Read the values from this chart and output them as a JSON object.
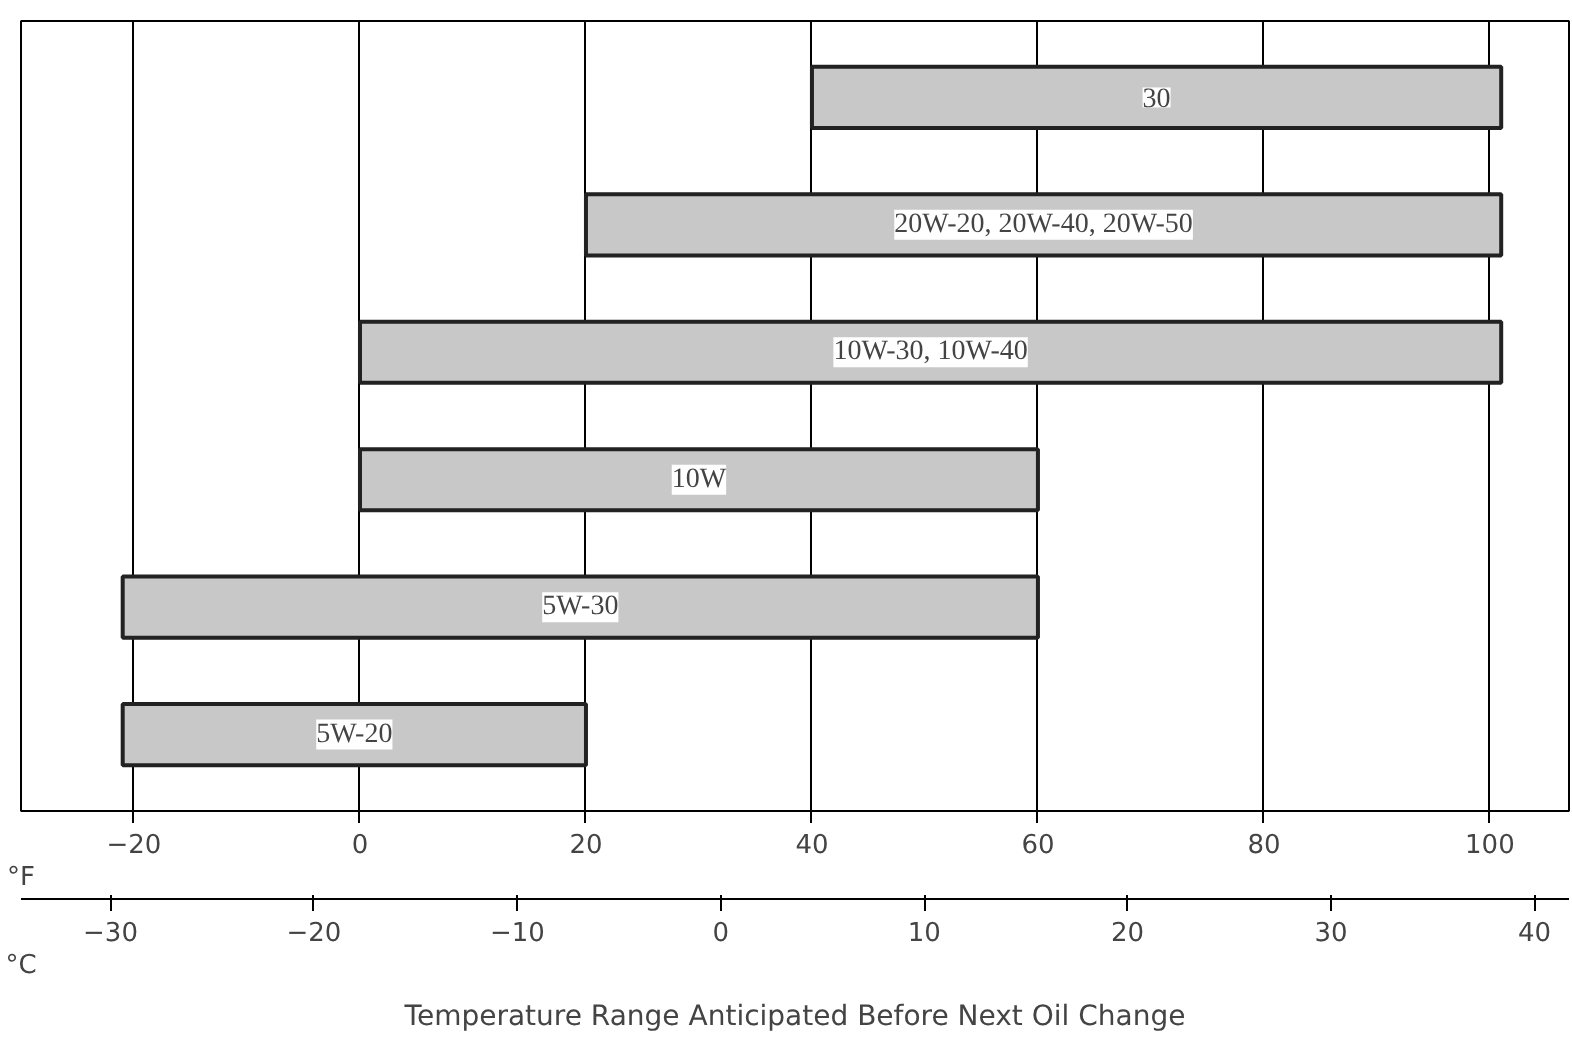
{
  "chart_data": {
    "type": "bar",
    "orientation": "horizontal",
    "categories": [
      "30",
      "20W-20, 20W-40, 20W-50",
      "10W-30, 10W-40",
      "10W",
      "5W-30",
      "5W-20"
    ],
    "base": [
      40,
      20,
      0,
      0,
      -21,
      -21
    ],
    "values": [
      61,
      81,
      101,
      60,
      81,
      41
    ],
    "color": "#c8c8c8",
    "xlabel": "°F",
    "x2label": "°C",
    "xlim": [
      -30,
      107
    ],
    "xticks": [
      -20,
      0,
      20,
      40,
      60,
      80,
      100
    ],
    "x2lim": [
      -34.4,
      41.7
    ],
    "x2ticks": [
      -30,
      -20,
      -10,
      0,
      10,
      20,
      30,
      40
    ],
    "grid": "x",
    "tick_labels": "x",
    "annotations": [
      "Temperature Range Anticipated Before Next Oil Change"
    ]
  }
}
